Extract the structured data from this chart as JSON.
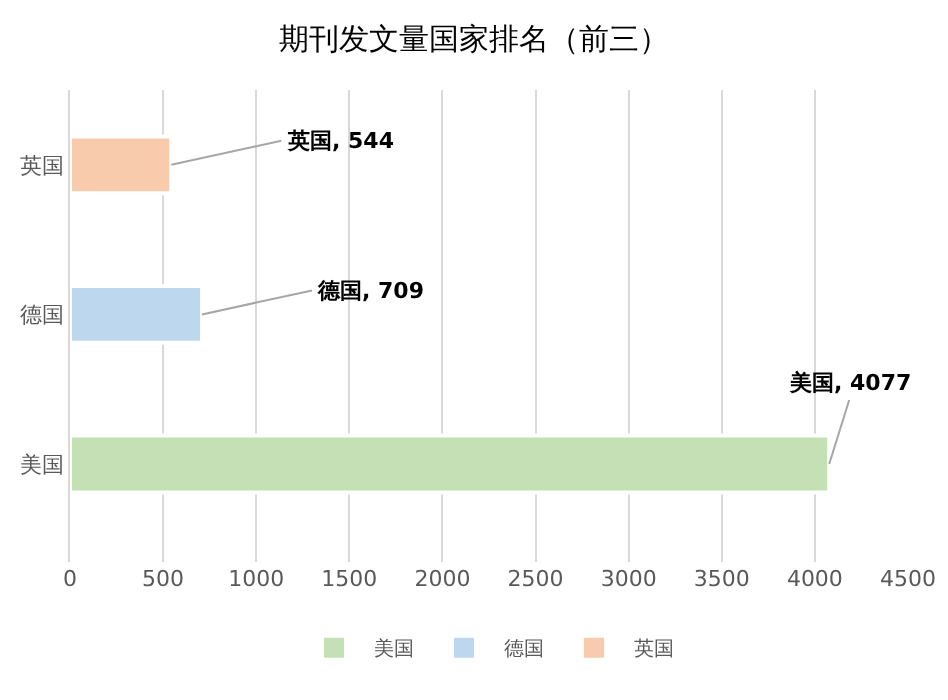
{
  "chart_data": {
    "type": "bar",
    "orientation": "horizontal",
    "title": "期刊发文量国家排名（前三）",
    "categories": [
      "英国",
      "德国",
      "美国"
    ],
    "series": [
      {
        "name": "美国",
        "color": "#c5e0b4",
        "values": [
          null,
          null,
          4077
        ],
        "value_labels": [
          null,
          null,
          "美国, 4077"
        ]
      },
      {
        "name": "德国",
        "color": "#bdd7ee",
        "values": [
          null,
          709,
          null
        ],
        "value_labels": [
          null,
          "德国, 709",
          null
        ]
      },
      {
        "name": "英国",
        "color": "#f8cbad",
        "values": [
          544,
          null,
          null
        ],
        "value_labels": [
          "英国, 544",
          null,
          null
        ]
      }
    ],
    "xlim": [
      0,
      4500
    ],
    "xticks": [
      0,
      500,
      1000,
      1500,
      2000,
      2500,
      3000,
      3500,
      4000,
      4500
    ],
    "grid": "x",
    "legend": "bottom"
  }
}
